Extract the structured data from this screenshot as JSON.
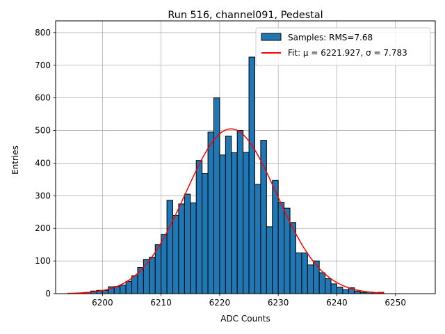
{
  "chart_data": {
    "type": "bar",
    "title": "Run 516, channel091, Pedestal",
    "xlabel": "ADC Counts",
    "ylabel": "Entries",
    "xlim": [
      6192,
      6256.8
    ],
    "ylim": [
      0,
      836
    ],
    "xticks": [
      6200,
      6210,
      6220,
      6230,
      6240,
      6250
    ],
    "yticks": [
      0,
      100,
      200,
      300,
      400,
      500,
      600,
      700,
      800
    ],
    "grid": true,
    "legend_position": "top-right",
    "bar_color": "#1f77b4",
    "bar_edge": "#000000",
    "fit_color": "#ff0000",
    "histogram": {
      "name": "Samples: RMS=7.68",
      "bin_width": 1,
      "x_start": 6195,
      "values": [
        1,
        2,
        4,
        8,
        10,
        10,
        21,
        22,
        26,
        38,
        55,
        80,
        105,
        112,
        150,
        182,
        286,
        240,
        275,
        305,
        278,
        408,
        368,
        495,
        600,
        425,
        483,
        432,
        500,
        433,
        725,
        335,
        470,
        205,
        347,
        280,
        262,
        218,
        125,
        125,
        88,
        100,
        64,
        46,
        30,
        20,
        12,
        18,
        8,
        4,
        5,
        3,
        4
      ]
    },
    "fit": {
      "name": "Fit: μ = 6221.927, σ = 7.783",
      "mu": 6221.927,
      "sigma": 7.783,
      "amplitude": 505,
      "x_range": [
        6194,
        6248
      ]
    }
  }
}
